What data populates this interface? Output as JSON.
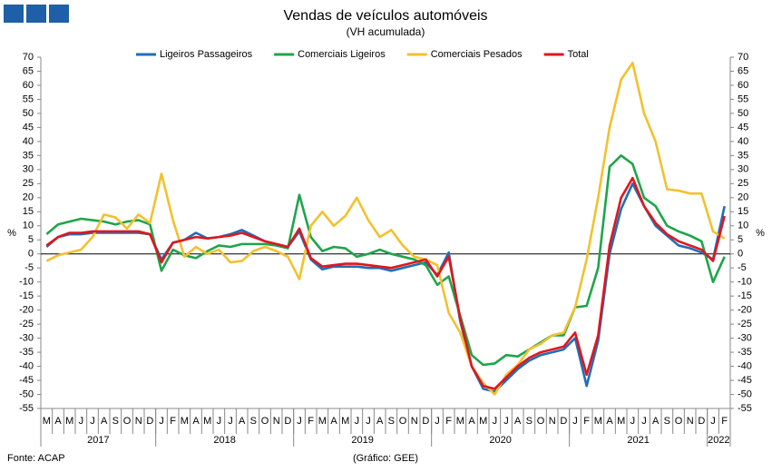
{
  "chart_data": {
    "type": "line",
    "title": "Vendas de veículos automóveis",
    "subtitle": "(VH acumulada)",
    "ylabel": "%",
    "y2label": "%",
    "source": "Fonte: ACAP",
    "credit": "(Gráfico: GEE)",
    "categories": [
      "M",
      "A",
      "M",
      "J",
      "J",
      "A",
      "S",
      "O",
      "N",
      "D",
      "J",
      "F",
      "M",
      "A",
      "M",
      "J",
      "J",
      "A",
      "S",
      "O",
      "N",
      "D",
      "J",
      "F",
      "M",
      "A",
      "M",
      "J",
      "J",
      "A",
      "S",
      "O",
      "N",
      "D",
      "J",
      "F",
      "M",
      "A",
      "M",
      "J",
      "J",
      "A",
      "S",
      "O",
      "N",
      "D",
      "J",
      "F",
      "M",
      "A",
      "M",
      "J",
      "J",
      "A",
      "S",
      "O",
      "N",
      "D",
      "J",
      "F"
    ],
    "years": [
      "2017",
      "2018",
      "2019",
      "2020",
      "2021",
      "2022"
    ],
    "series": [
      {
        "name": "Ligeiros Passageiros",
        "color": "#1f6fb5",
        "values": [
          2.5,
          6,
          7,
          7,
          7.5,
          7.5,
          7.5,
          7.5,
          7.5,
          7,
          -2,
          4,
          5,
          7.5,
          5.5,
          6,
          7,
          8.5,
          6.5,
          4.5,
          3.5,
          2.5,
          8,
          -2,
          -5.5,
          -4.5,
          -4.5,
          -4.5,
          -5,
          -5,
          -6,
          -5,
          -4,
          -3,
          -7.5,
          0.5,
          -24,
          -40,
          -48,
          -49,
          -45,
          -41,
          -38,
          -36,
          -35,
          -34,
          -30,
          -47,
          -31,
          0,
          16,
          25,
          17,
          10,
          6.5,
          3,
          2,
          0.5,
          -2,
          17
        ]
      },
      {
        "name": "Comerciais Ligeiros",
        "color": "#1ea54a",
        "values": [
          7,
          10.5,
          11.5,
          12.5,
          12,
          11.5,
          10.5,
          11.5,
          12,
          10.5,
          -6,
          1.5,
          -0.5,
          -1.5,
          1,
          3,
          2.5,
          3.5,
          3.5,
          3.5,
          3,
          2,
          21,
          6,
          1,
          2.5,
          2,
          -1,
          0,
          1.5,
          0,
          -1,
          -2,
          -4,
          -11,
          -8,
          -22,
          -36,
          -39.5,
          -39,
          -36,
          -36.5,
          -34,
          -31.5,
          -29,
          -29,
          -19,
          -18.5,
          -5,
          31,
          35,
          32,
          20,
          17,
          10,
          8,
          6.5,
          4.5,
          -10,
          -1
        ]
      },
      {
        "name": "Comerciais Pesados",
        "color": "#f2c12e",
        "values": [
          -2.5,
          -0.5,
          0.5,
          1.5,
          6,
          14,
          13,
          9,
          14,
          11,
          28.5,
          12,
          -1,
          2.5,
          0,
          1.5,
          -3,
          -2.5,
          1,
          2.5,
          1,
          -1,
          -9,
          10,
          15,
          10,
          13.5,
          20,
          12,
          6,
          8.5,
          3,
          -1,
          -2,
          -4,
          -21,
          -28,
          -40,
          -46,
          -50,
          -43,
          -39.5,
          -34,
          -32,
          -29,
          -28,
          -19,
          -2,
          20,
          45,
          62,
          68,
          50,
          40,
          23,
          22.5,
          21.5,
          21.5,
          8,
          5.5
        ]
      },
      {
        "name": "Total",
        "color": "#e0161e",
        "values": [
          3,
          6,
          7.5,
          7.5,
          8,
          8,
          8,
          8,
          8,
          7,
          -3,
          4,
          5,
          6,
          5.5,
          6,
          6.5,
          7.5,
          6,
          4.5,
          3.5,
          2.5,
          9,
          -1.5,
          -4.5,
          -4,
          -3.5,
          -3.5,
          -4,
          -4.5,
          -5,
          -4,
          -3,
          -2,
          -8,
          -1,
          -23,
          -40,
          -47,
          -48,
          -44,
          -40,
          -37,
          -35,
          -34,
          -33,
          -28,
          -43,
          -29,
          3,
          20,
          27,
          17,
          11,
          7,
          4.5,
          3,
          1.5,
          -2.5,
          13.5
        ]
      }
    ],
    "ylim": [
      -55,
      70
    ],
    "yticks": [
      -55,
      -50,
      -45,
      -40,
      -35,
      -30,
      -25,
      -20,
      -15,
      -10,
      -5,
      0,
      5,
      10,
      15,
      20,
      25,
      30,
      35,
      40,
      45,
      50,
      55,
      60,
      65,
      70
    ],
    "y2lim": [
      -55,
      70
    ],
    "y2ticks": [
      -55,
      -50,
      -45,
      -40,
      -35,
      -30,
      -25,
      -20,
      -15,
      -10,
      -5,
      0,
      5,
      10,
      15,
      20,
      25,
      30,
      35,
      40,
      45,
      50,
      55,
      60,
      65,
      70
    ],
    "legend": "top"
  }
}
